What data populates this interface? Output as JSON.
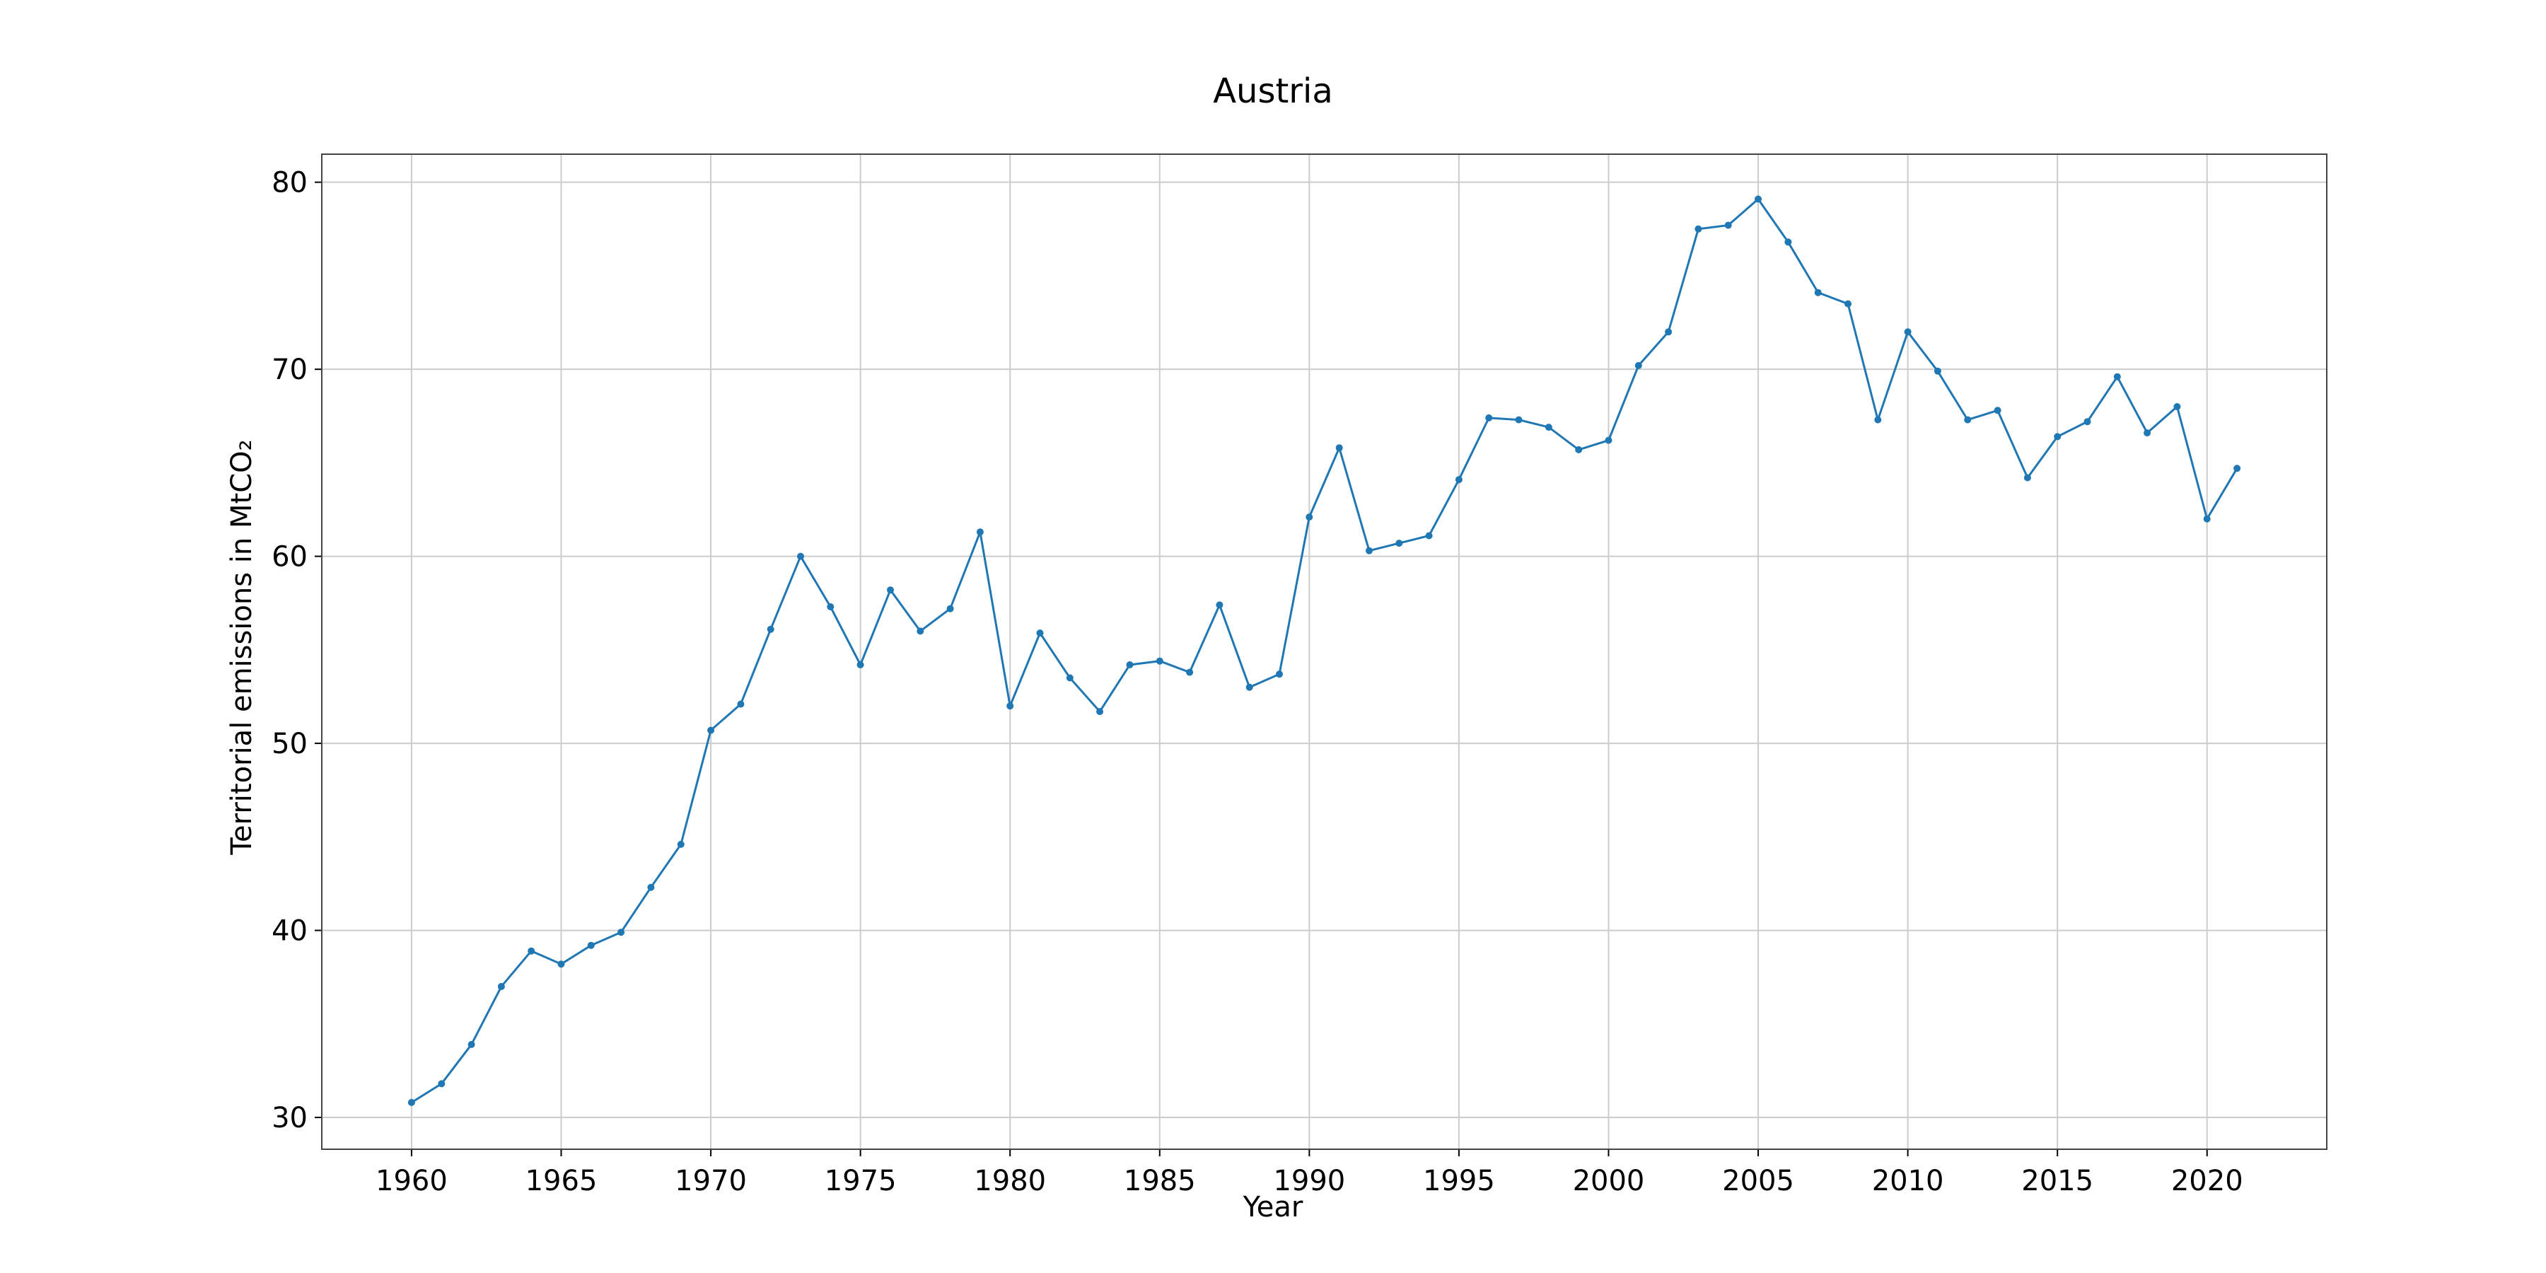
{
  "chart_data": {
    "type": "line",
    "title": "Austria",
    "xlabel": "Year",
    "ylabel": "Territorial emissions in MtCO₂",
    "xlim": [
      1957,
      2024
    ],
    "ylim": [
      28.3,
      81.5
    ],
    "xticks": [
      1960,
      1965,
      1970,
      1975,
      1980,
      1985,
      1990,
      1995,
      2000,
      2005,
      2010,
      2015,
      2020
    ],
    "yticks": [
      30,
      40,
      50,
      60,
      70,
      80
    ],
    "grid": true,
    "color": "#1f77b4",
    "x": [
      1960,
      1961,
      1962,
      1963,
      1964,
      1965,
      1966,
      1967,
      1968,
      1969,
      1970,
      1971,
      1972,
      1973,
      1974,
      1975,
      1976,
      1977,
      1978,
      1979,
      1980,
      1981,
      1982,
      1983,
      1984,
      1985,
      1986,
      1987,
      1988,
      1989,
      1990,
      1991,
      1992,
      1993,
      1994,
      1995,
      1996,
      1997,
      1998,
      1999,
      2000,
      2001,
      2002,
      2003,
      2004,
      2005,
      2006,
      2007,
      2008,
      2009,
      2010,
      2011,
      2012,
      2013,
      2014,
      2015,
      2016,
      2017,
      2018,
      2019,
      2020,
      2021
    ],
    "y": [
      30.8,
      31.8,
      33.9,
      37.0,
      38.9,
      38.2,
      39.2,
      39.9,
      42.3,
      44.6,
      50.7,
      52.1,
      56.1,
      60.0,
      57.3,
      54.2,
      58.2,
      56.0,
      57.2,
      61.3,
      52.0,
      55.9,
      53.5,
      51.7,
      54.2,
      54.4,
      53.8,
      57.4,
      53.0,
      53.7,
      62.1,
      65.8,
      60.3,
      60.7,
      61.1,
      64.1,
      67.4,
      67.3,
      66.9,
      65.7,
      66.2,
      70.2,
      72.0,
      77.5,
      77.7,
      79.1,
      76.8,
      74.1,
      73.5,
      67.3,
      72.0,
      69.9,
      67.3,
      67.8,
      64.2,
      66.4,
      67.2,
      69.6,
      66.6,
      68.0,
      62.0,
      64.7
    ]
  }
}
